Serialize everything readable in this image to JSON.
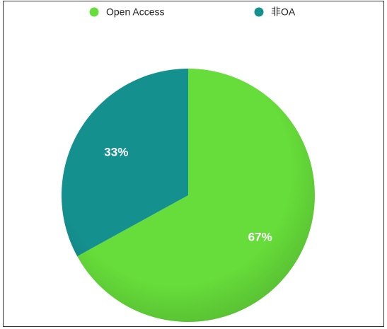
{
  "chart_data": {
    "type": "pie",
    "categories": [
      "Open Access",
      "非OA"
    ],
    "values": [
      67,
      33
    ],
    "value_labels": [
      "67%",
      "33%"
    ],
    "colors": [
      "#66dd3a",
      "#14908f"
    ],
    "legend": "top"
  }
}
